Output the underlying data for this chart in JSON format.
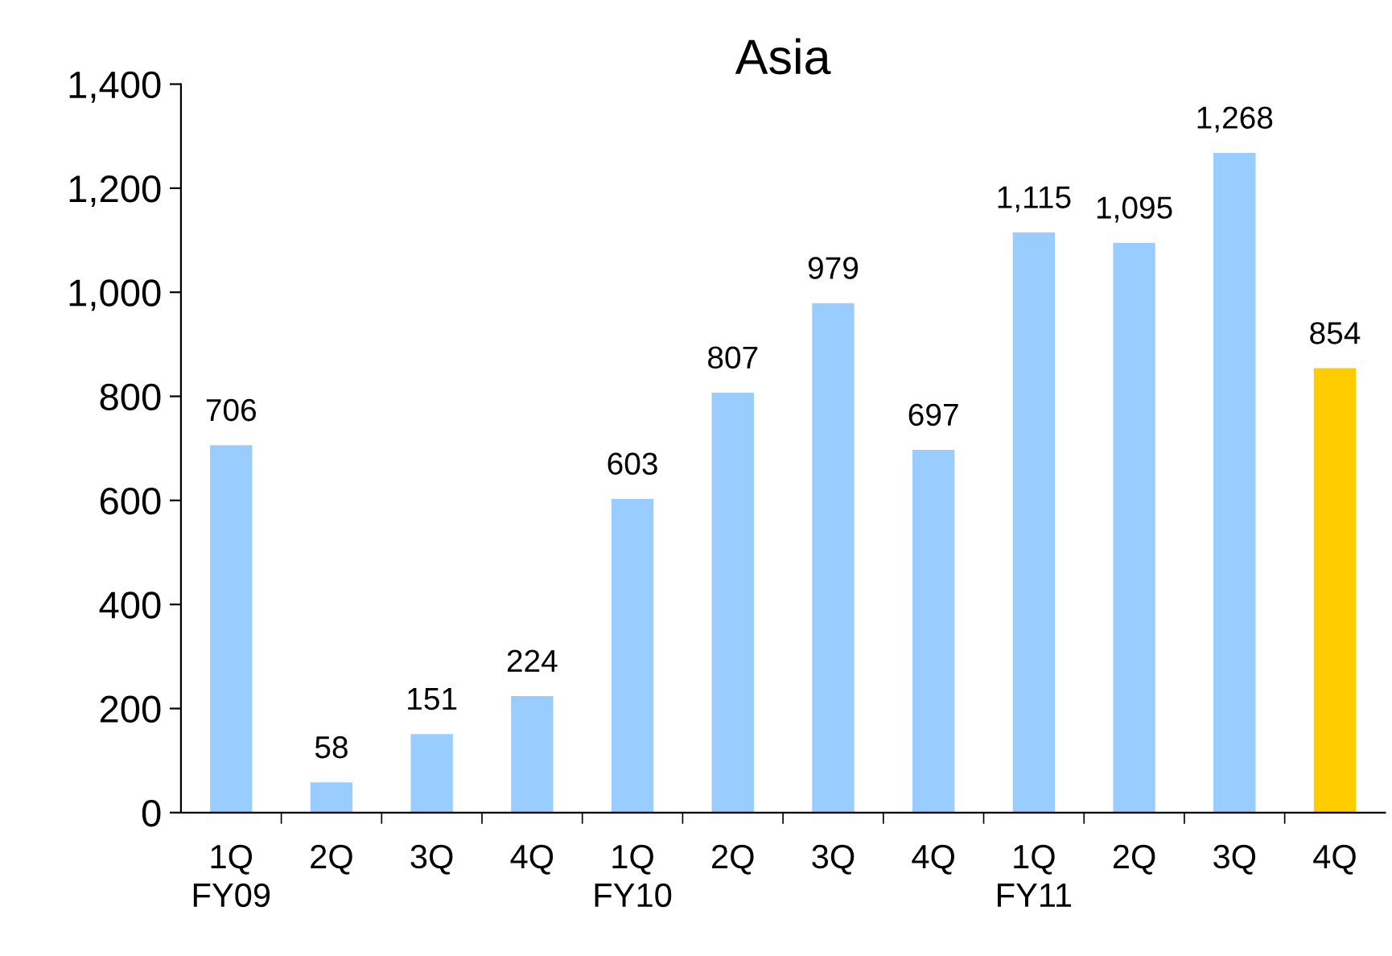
{
  "chart_data": {
    "type": "bar",
    "title": "Asia",
    "categories": [
      "1Q\nFY09",
      "2Q",
      "3Q",
      "4Q",
      "1Q\nFY10",
      "2Q",
      "3Q",
      "4Q",
      "1Q\nFY11",
      "2Q",
      "3Q",
      "4Q"
    ],
    "values": [
      706,
      58,
      151,
      224,
      603,
      807,
      979,
      697,
      1115,
      1095,
      1268,
      854
    ],
    "colors": [
      "#99ccff",
      "#99ccff",
      "#99ccff",
      "#99ccff",
      "#99ccff",
      "#99ccff",
      "#99ccff",
      "#99ccff",
      "#99ccff",
      "#99ccff",
      "#99ccff",
      "#ffcc00"
    ],
    "value_labels": [
      "706",
      "58",
      "151",
      "224",
      "603",
      "807",
      "979",
      "697",
      "1,115",
      "1,095",
      "1,268",
      "854"
    ],
    "ylim": [
      0,
      1400
    ],
    "yticks": [
      0,
      200,
      400,
      600,
      800,
      {
        "value": 1000,
        "label": "1,000"
      },
      {
        "value": 1200,
        "label": "1,200"
      },
      {
        "value": 1400,
        "label": "1,400"
      }
    ],
    "grid": false,
    "legend": false
  }
}
